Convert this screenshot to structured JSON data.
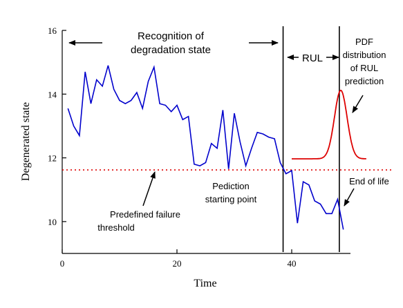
{
  "chart_data": {
    "type": "line",
    "xlabel": "Time",
    "ylabel": "Degenerated state",
    "xlim": [
      0,
      50
    ],
    "ylim": [
      9,
      16
    ],
    "x_ticks": [
      0,
      20,
      40
    ],
    "y_ticks": [
      10,
      12,
      14,
      16
    ],
    "grid": false,
    "legend": "none",
    "series": [
      {
        "color": "#0000cc",
        "x": [
          1,
          2,
          3,
          4,
          5,
          6,
          7,
          8,
          9,
          10,
          11,
          12,
          13,
          14,
          15,
          16,
          17,
          18,
          19,
          20,
          21,
          22,
          23,
          24,
          25,
          26,
          27,
          28,
          29,
          30,
          31,
          32,
          33,
          34,
          35,
          36,
          37,
          38,
          39,
          40,
          41,
          42,
          43,
          44,
          45,
          46,
          47,
          48,
          49
        ],
        "y": [
          13.55,
          13.0,
          12.7,
          14.7,
          13.7,
          14.45,
          14.25,
          14.9,
          14.15,
          13.8,
          13.7,
          13.8,
          14.05,
          13.55,
          14.4,
          14.85,
          13.7,
          13.65,
          13.45,
          13.65,
          13.2,
          13.3,
          11.8,
          11.75,
          11.85,
          12.45,
          12.3,
          13.5,
          11.65,
          13.4,
          12.5,
          11.75,
          12.3,
          12.8,
          12.75,
          12.65,
          12.6,
          11.85,
          11.5,
          11.6,
          9.95,
          11.25,
          11.15,
          10.65,
          10.55,
          10.25,
          10.25,
          10.7,
          9.75
        ]
      },
      {
        "color": "#dd0000",
        "kind": "pdf-curve",
        "baseline": 11.97,
        "peak": 14.12,
        "mean": 48.55,
        "sd": 1.1,
        "x_range": [
          40,
          53
        ]
      }
    ],
    "threshold": {
      "y": 11.62,
      "color": "#dd0000",
      "style": "dotted"
    },
    "vertical_lines": [
      38.5,
      48.3
    ],
    "annotations": {
      "recognition": "Recognition of degradation state",
      "recognition_line1": "Recognition of",
      "recognition_line2": "degradation state",
      "rul": "RUL",
      "pdf_line1": "PDF",
      "pdf_line2": "distribution",
      "pdf_line3": "of  RUL",
      "pdf_line4": "prediction",
      "prediction_line1": "Pediction",
      "prediction_line2": "starting point",
      "end_of_life": "End of life",
      "threshold_line1": "Predefined failure",
      "threshold_line2": "threshold"
    }
  }
}
